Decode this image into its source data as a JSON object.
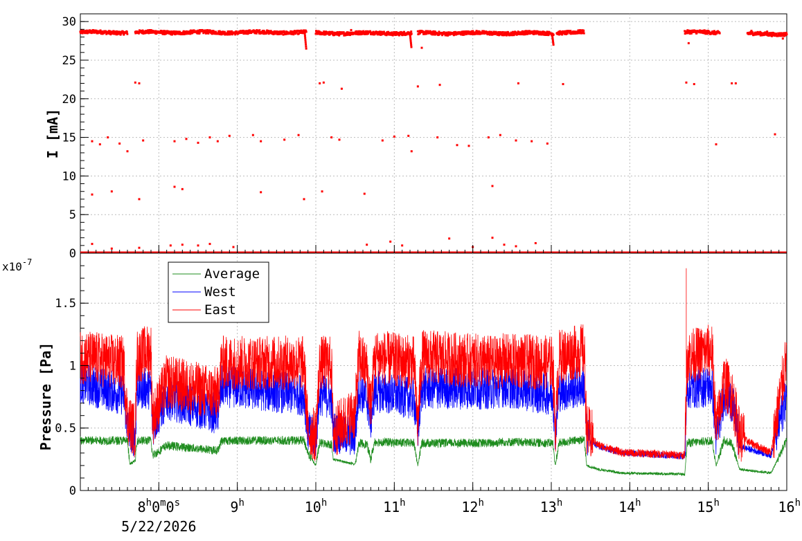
{
  "chart_data": [
    {
      "type": "scatter",
      "title": "",
      "ylabel": "I [mA]",
      "ylim": [
        0,
        31
      ],
      "xlim_hours": [
        7.0,
        16.0
      ],
      "y_ticks": [
        0,
        5,
        10,
        15,
        20,
        25,
        30
      ],
      "y_tick_labels": [
        "0",
        "5",
        "10",
        "15",
        "20",
        "25",
        "30"
      ],
      "grid": true,
      "series": [
        {
          "color": "#ff0000",
          "segments": [
            {
              "start": 7.0,
              "end": 7.6,
              "level": 28.6
            },
            {
              "start": 7.7,
              "end": 9.88,
              "level": 28.6
            },
            {
              "start": 10.0,
              "end": 11.22,
              "level": 28.5
            },
            {
              "start": 11.3,
              "end": 13.03,
              "level": 28.5
            },
            {
              "start": 13.07,
              "end": 13.42,
              "level": 28.6
            },
            {
              "start": 14.7,
              "end": 15.15,
              "level": 28.6
            },
            {
              "start": 15.5,
              "end": 16.0,
              "level": 28.4
            }
          ],
          "dropouts": [
            {
              "x": 9.88,
              "y": 26.5
            },
            {
              "x": 11.22,
              "y": 26.7
            },
            {
              "x": 13.03,
              "y": 27.0
            }
          ],
          "scatter_points": [
            {
              "x": 7.15,
              "y": 1.2
            },
            {
              "x": 7.4,
              "y": 0.6
            },
            {
              "x": 7.75,
              "y": 0.7
            },
            {
              "x": 8.15,
              "y": 1.0
            },
            {
              "x": 8.3,
              "y": 1.1
            },
            {
              "x": 8.5,
              "y": 1.0
            },
            {
              "x": 8.65,
              "y": 1.2
            },
            {
              "x": 8.95,
              "y": 0.8
            },
            {
              "x": 10.65,
              "y": 1.1
            },
            {
              "x": 10.95,
              "y": 1.5
            },
            {
              "x": 11.1,
              "y": 1.0
            },
            {
              "x": 11.7,
              "y": 1.9
            },
            {
              "x": 12.0,
              "y": 0.8
            },
            {
              "x": 12.25,
              "y": 2.0
            },
            {
              "x": 12.4,
              "y": 1.1
            },
            {
              "x": 12.55,
              "y": 0.9
            },
            {
              "x": 12.8,
              "y": 1.3
            },
            {
              "x": 7.15,
              "y": 7.6
            },
            {
              "x": 7.4,
              "y": 8.0
            },
            {
              "x": 7.75,
              "y": 7.0
            },
            {
              "x": 8.2,
              "y": 8.6
            },
            {
              "x": 8.3,
              "y": 8.3
            },
            {
              "x": 9.3,
              "y": 7.9
            },
            {
              "x": 9.85,
              "y": 7.0
            },
            {
              "x": 10.08,
              "y": 8.0
            },
            {
              "x": 10.62,
              "y": 7.7
            },
            {
              "x": 12.25,
              "y": 8.7
            },
            {
              "x": 7.15,
              "y": 14.5
            },
            {
              "x": 7.25,
              "y": 14.1
            },
            {
              "x": 7.35,
              "y": 15.0
            },
            {
              "x": 7.5,
              "y": 14.2
            },
            {
              "x": 7.6,
              "y": 13.2
            },
            {
              "x": 7.8,
              "y": 14.6
            },
            {
              "x": 8.2,
              "y": 14.5
            },
            {
              "x": 8.35,
              "y": 14.8
            },
            {
              "x": 8.5,
              "y": 14.3
            },
            {
              "x": 8.65,
              "y": 15.0
            },
            {
              "x": 8.75,
              "y": 14.5
            },
            {
              "x": 8.9,
              "y": 15.2
            },
            {
              "x": 9.2,
              "y": 15.3
            },
            {
              "x": 9.3,
              "y": 14.5
            },
            {
              "x": 9.6,
              "y": 14.7
            },
            {
              "x": 9.78,
              "y": 15.3
            },
            {
              "x": 10.2,
              "y": 15.0
            },
            {
              "x": 10.3,
              "y": 14.7
            },
            {
              "x": 10.85,
              "y": 14.6
            },
            {
              "x": 11.0,
              "y": 15.1
            },
            {
              "x": 11.18,
              "y": 15.2
            },
            {
              "x": 11.22,
              "y": 13.2
            },
            {
              "x": 11.55,
              "y": 15.0
            },
            {
              "x": 11.8,
              "y": 14.0
            },
            {
              "x": 11.95,
              "y": 13.9
            },
            {
              "x": 12.2,
              "y": 15.0
            },
            {
              "x": 12.35,
              "y": 15.3
            },
            {
              "x": 12.55,
              "y": 14.6
            },
            {
              "x": 12.75,
              "y": 14.5
            },
            {
              "x": 12.95,
              "y": 14.2
            },
            {
              "x": 15.1,
              "y": 14.1
            },
            {
              "x": 15.85,
              "y": 15.4
            },
            {
              "x": 7.7,
              "y": 22.1
            },
            {
              "x": 7.75,
              "y": 22.0
            },
            {
              "x": 10.05,
              "y": 22.0
            },
            {
              "x": 10.1,
              "y": 22.1
            },
            {
              "x": 10.33,
              "y": 21.3
            },
            {
              "x": 11.3,
              "y": 21.6
            },
            {
              "x": 11.58,
              "y": 21.8
            },
            {
              "x": 12.58,
              "y": 22.0
            },
            {
              "x": 13.15,
              "y": 21.9
            },
            {
              "x": 14.72,
              "y": 22.1
            },
            {
              "x": 14.82,
              "y": 21.9
            },
            {
              "x": 15.3,
              "y": 22.0
            },
            {
              "x": 15.35,
              "y": 22.0
            },
            {
              "x": 11.35,
              "y": 26.6
            },
            {
              "x": 14.75,
              "y": 27.2
            },
            {
              "x": 15.55,
              "y": 28.8
            },
            {
              "x": 15.75,
              "y": 28.7
            },
            {
              "x": 10.45,
              "y": 28.9
            },
            {
              "x": 15.95,
              "y": 27.8
            }
          ]
        }
      ]
    },
    {
      "type": "line",
      "ylabel": "Pressure [Pa]",
      "xlabel": "",
      "y_scale_label": "x10",
      "y_scale_exponent": "-7",
      "ylim": [
        0,
        1.9
      ],
      "y_ticks": [
        0,
        0.5,
        1,
        1.5
      ],
      "y_tick_labels": [
        "0",
        "0.5",
        "1",
        "1.5"
      ],
      "x_ticks_hours": [
        8,
        9,
        10,
        11,
        12,
        13,
        14,
        15,
        16
      ],
      "x_tick_labels": [
        {
          "num": "8",
          "parts": [
            "h",
            "0",
            "m",
            "0",
            "s"
          ],
          "date": "5/22/2026"
        },
        {
          "num": "9",
          "parts": [
            "h"
          ]
        },
        {
          "num": "10",
          "parts": [
            "h"
          ]
        },
        {
          "num": "11",
          "parts": [
            "h"
          ]
        },
        {
          "num": "12",
          "parts": [
            "h"
          ]
        },
        {
          "num": "13",
          "parts": [
            "h"
          ]
        },
        {
          "num": "14",
          "parts": [
            "h"
          ]
        },
        {
          "num": "15",
          "parts": [
            "h"
          ]
        },
        {
          "num": "16",
          "parts": [
            "h"
          ]
        }
      ],
      "grid": true,
      "legend_position": "top-left",
      "series": [
        {
          "name": "Average",
          "color": "#1e8c1e",
          "breakpoints": [
            [
              7.0,
              0.4
            ],
            [
              7.6,
              0.4
            ],
            [
              7.63,
              0.21
            ],
            [
              7.7,
              0.24
            ],
            [
              7.72,
              0.4
            ],
            [
              7.9,
              0.4
            ],
            [
              7.92,
              0.28
            ],
            [
              8.1,
              0.36
            ],
            [
              8.75,
              0.32
            ],
            [
              8.8,
              0.4
            ],
            [
              9.85,
              0.4
            ],
            [
              9.9,
              0.3
            ],
            [
              10.0,
              0.2
            ],
            [
              10.05,
              0.38
            ],
            [
              10.2,
              0.37
            ],
            [
              10.22,
              0.25
            ],
            [
              10.5,
              0.21
            ],
            [
              10.55,
              0.38
            ],
            [
              10.65,
              0.37
            ],
            [
              10.7,
              0.25
            ],
            [
              10.75,
              0.39
            ],
            [
              11.25,
              0.38
            ],
            [
              11.3,
              0.2
            ],
            [
              11.35,
              0.38
            ],
            [
              12.3,
              0.38
            ],
            [
              12.35,
              0.39
            ],
            [
              13.02,
              0.38
            ],
            [
              13.05,
              0.2
            ],
            [
              13.1,
              0.38
            ],
            [
              13.42,
              0.41
            ],
            [
              13.45,
              0.2
            ],
            [
              13.6,
              0.17
            ],
            [
              13.9,
              0.14
            ],
            [
              14.7,
              0.13
            ],
            [
              14.73,
              0.38
            ],
            [
              15.05,
              0.4
            ],
            [
              15.1,
              0.2
            ],
            [
              15.2,
              0.4
            ],
            [
              15.3,
              0.38
            ],
            [
              15.4,
              0.17
            ],
            [
              15.8,
              0.14
            ],
            [
              16.0,
              0.4
            ]
          ],
          "noise_amplitude": 0.035
        },
        {
          "name": "West",
          "color": "#0000ff",
          "breakpoints": [
            [
              7.0,
              0.85
            ],
            [
              7.55,
              0.75
            ],
            [
              7.6,
              0.5
            ],
            [
              7.7,
              0.4
            ],
            [
              7.72,
              0.8
            ],
            [
              7.9,
              0.8
            ],
            [
              7.92,
              0.5
            ],
            [
              8.1,
              0.72
            ],
            [
              8.75,
              0.6
            ],
            [
              8.8,
              0.82
            ],
            [
              9.85,
              0.75
            ],
            [
              9.9,
              0.45
            ],
            [
              10.0,
              0.4
            ],
            [
              10.05,
              0.75
            ],
            [
              10.2,
              0.72
            ],
            [
              10.22,
              0.45
            ],
            [
              10.5,
              0.42
            ],
            [
              10.55,
              0.8
            ],
            [
              10.65,
              0.72
            ],
            [
              10.7,
              0.55
            ],
            [
              10.75,
              0.78
            ],
            [
              11.25,
              0.72
            ],
            [
              11.3,
              0.45
            ],
            [
              11.35,
              0.8
            ],
            [
              12.3,
              0.8
            ],
            [
              12.35,
              0.82
            ],
            [
              13.02,
              0.75
            ],
            [
              13.05,
              0.45
            ],
            [
              13.1,
              0.78
            ],
            [
              13.42,
              0.82
            ],
            [
              13.45,
              0.42
            ],
            [
              13.6,
              0.35
            ],
            [
              13.9,
              0.3
            ],
            [
              14.7,
              0.27
            ],
            [
              14.73,
              0.8
            ],
            [
              15.05,
              0.82
            ],
            [
              15.1,
              0.4
            ],
            [
              15.2,
              0.75
            ],
            [
              15.3,
              0.7
            ],
            [
              15.4,
              0.35
            ],
            [
              15.8,
              0.28
            ],
            [
              16.0,
              0.75
            ]
          ],
          "noise_amplitude": 0.17
        },
        {
          "name": "East",
          "color": "#ff0000",
          "breakpoints": [
            [
              7.0,
              1.05
            ],
            [
              7.55,
              1.0
            ],
            [
              7.6,
              0.55
            ],
            [
              7.7,
              0.45
            ],
            [
              7.72,
              1.05
            ],
            [
              7.9,
              1.1
            ],
            [
              7.92,
              0.55
            ],
            [
              8.1,
              0.85
            ],
            [
              8.75,
              0.75
            ],
            [
              8.8,
              1.0
            ],
            [
              9.85,
              1.0
            ],
            [
              9.9,
              0.45
            ],
            [
              10.0,
              0.42
            ],
            [
              10.05,
              1.0
            ],
            [
              10.2,
              1.0
            ],
            [
              10.22,
              0.45
            ],
            [
              10.5,
              0.6
            ],
            [
              10.55,
              1.05
            ],
            [
              10.65,
              0.95
            ],
            [
              10.7,
              0.65
            ],
            [
              10.75,
              1.05
            ],
            [
              11.25,
              1.0
            ],
            [
              11.3,
              0.5
            ],
            [
              11.35,
              1.05
            ],
            [
              12.3,
              1.0
            ],
            [
              12.35,
              1.02
            ],
            [
              13.02,
              1.0
            ],
            [
              13.05,
              0.45
            ],
            [
              13.1,
              1.05
            ],
            [
              13.42,
              1.1
            ],
            [
              13.45,
              0.45
            ],
            [
              13.6,
              0.36
            ],
            [
              13.9,
              0.3
            ],
            [
              14.7,
              0.28
            ],
            [
              14.73,
              1.05
            ],
            [
              15.05,
              1.1
            ],
            [
              15.1,
              0.45
            ],
            [
              15.2,
              0.85
            ],
            [
              15.3,
              0.75
            ],
            [
              15.4,
              0.42
            ],
            [
              15.8,
              0.3
            ],
            [
              16.0,
              1.05
            ]
          ],
          "noise_amplitude": 0.22,
          "spike": {
            "x": 14.72,
            "y": 1.78
          }
        }
      ]
    }
  ]
}
